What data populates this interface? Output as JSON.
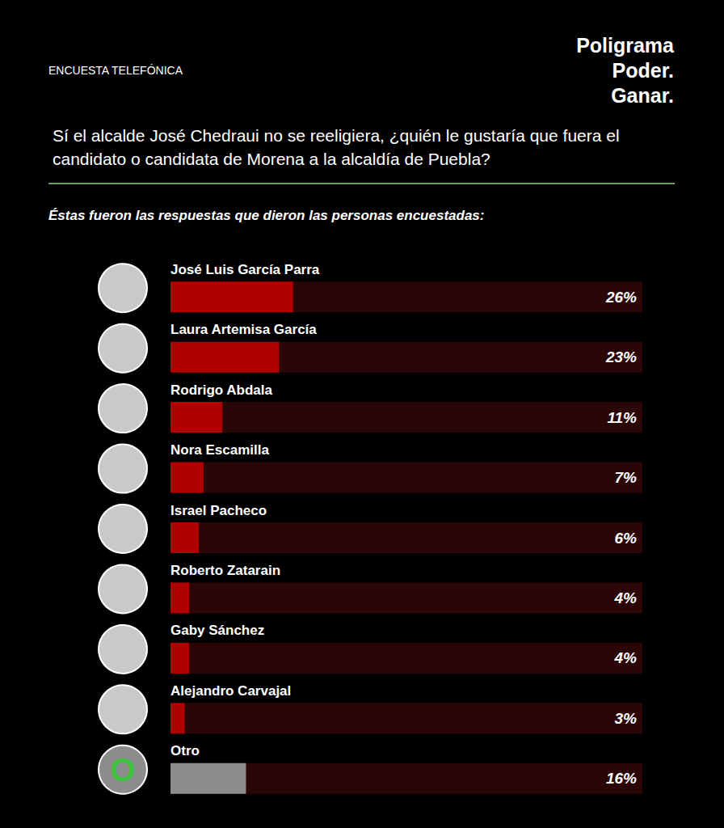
{
  "chart_data": {
    "type": "bar",
    "orientation": "horizontal",
    "title": "Sí el alcalde José Chedraui no se reeligiera, ¿quién le gustaría que fuera el candidato o candidata de Morena a la alcaldía de Puebla?",
    "subtitle": "Éstas fueron las respuestas que dieron las personas encuestadas:",
    "annotations": {
      "survey": "ENCUESTA TELEFÓNICA",
      "brand": [
        "Poligrama",
        "Poder.",
        "Ganar."
      ],
      "other_icon": "O"
    },
    "categories": [
      "José Luis García Parra",
      "Laura Artemisa García",
      "Rodrigo Abdala",
      "Nora Escamilla",
      "Israel Pacheco",
      "Roberto Zatarain",
      "Gaby Sánchez",
      "Alejandro Carvajal",
      "Otro"
    ],
    "values": [
      26,
      23,
      11,
      7,
      6,
      4,
      4,
      3,
      16
    ],
    "value_labels": [
      "26%",
      "23%",
      "11%",
      "7%",
      "6%",
      "4%",
      "4%",
      "3%",
      "16%"
    ],
    "colors": [
      "#b00000",
      "#b00000",
      "#b00000",
      "#b00000",
      "#b00000",
      "#b00000",
      "#b00000",
      "#b00000",
      "#8c8c8c"
    ],
    "xlim": [
      0,
      100
    ],
    "tick_labels": false,
    "grid": false,
    "data_labels": true
  }
}
